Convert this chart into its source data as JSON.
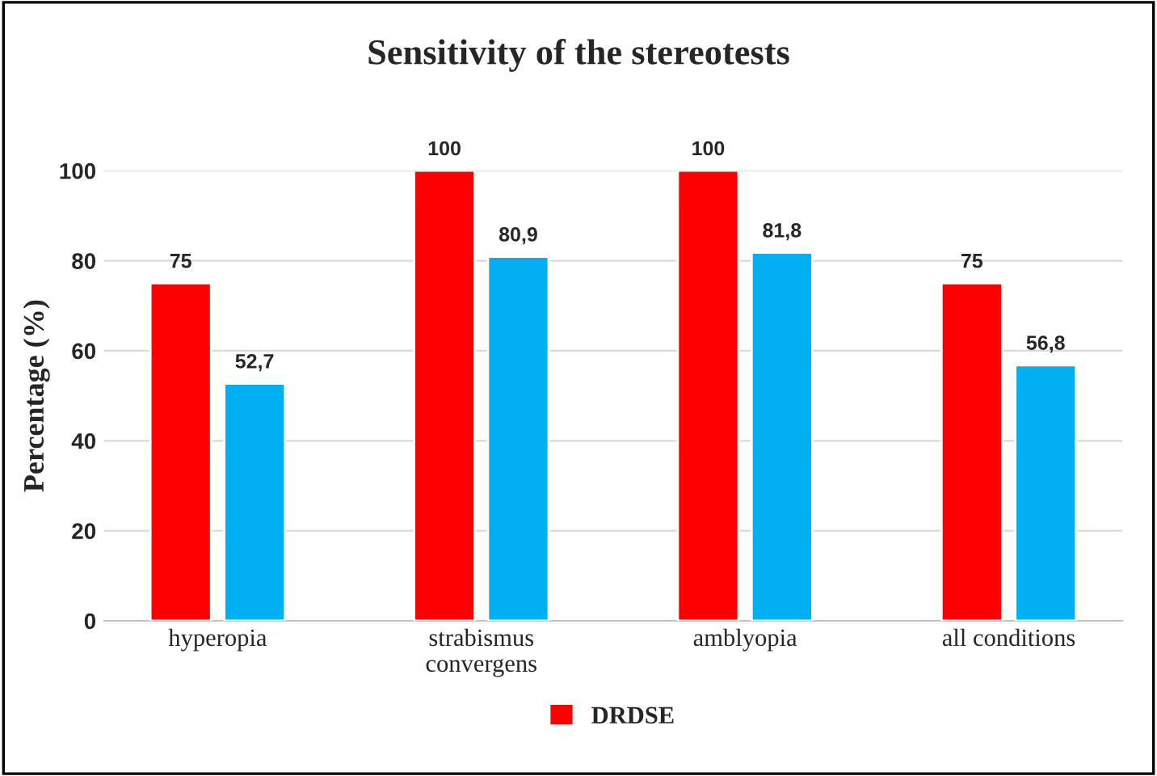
{
  "chart_data": {
    "type": "bar",
    "title": "Sensitivity of the stereotests",
    "ylabel": "Percentage (%)",
    "categories": [
      "hyperopia",
      "strabismus\nconvergens",
      "amblyopia",
      "all conditions"
    ],
    "series": [
      {
        "name": "DRDSE",
        "color": "#ff0000",
        "values": [
          75,
          100,
          100,
          75
        ],
        "value_labels": [
          "75",
          "100",
          "100",
          "75"
        ]
      },
      {
        "color": "#00b0f0",
        "values": [
          52.7,
          80.9,
          81.8,
          56.8
        ],
        "value_labels": [
          "52,7",
          "80,9",
          "81,8",
          "56,8"
        ]
      }
    ],
    "ylim": [
      0,
      100
    ],
    "yticks": [
      0,
      20,
      40,
      60,
      80,
      100
    ],
    "grid": "y",
    "legend": "bottom"
  }
}
